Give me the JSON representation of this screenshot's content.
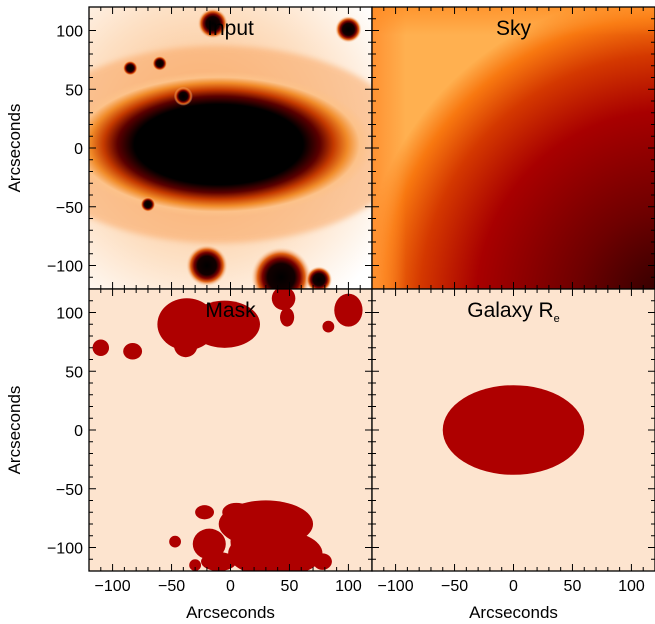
{
  "chart_data": {
    "type": "heatmap",
    "layout": "2x2",
    "xlabel": "Arcseconds",
    "ylabel": "Arcseconds",
    "xlim": [
      -120,
      120
    ],
    "ylim": [
      -120,
      120
    ],
    "xticks": [
      -100,
      -50,
      0,
      50,
      100
    ],
    "yticks": [
      -100,
      -50,
      0,
      50,
      100
    ],
    "colors": {
      "black": "#000000",
      "dark_red": "#b00000",
      "orange": "#ff8c1a",
      "light": "#ffe8d2",
      "mask_bg": "#fde4cf",
      "mask_fg": "#ae0000"
    },
    "panels": [
      {
        "title": "Input",
        "subscript": "",
        "kind": "image",
        "galaxy": {
          "center": [
            -10,
            3
          ],
          "semi_axes": [
            130,
            62
          ]
        },
        "point_sources": [
          {
            "x": -15,
            "y": 106,
            "radius": 8
          },
          {
            "x": 100,
            "y": 101,
            "radius": 7
          },
          {
            "x": -40,
            "y": 44,
            "radius": 5
          },
          {
            "x": -85,
            "y": 68,
            "radius": 4
          },
          {
            "x": -60,
            "y": 72,
            "radius": 4
          },
          {
            "x": -70,
            "y": -48,
            "radius": 4
          },
          {
            "x": -20,
            "y": -100,
            "radius": 11
          },
          {
            "x": 43,
            "y": -110,
            "radius": 16
          },
          {
            "x": 75,
            "y": -112,
            "radius": 7
          }
        ]
      },
      {
        "title": "Sky",
        "subscript": "",
        "kind": "gradient",
        "gradient": "bright at left and top edges, darkening toward lower right"
      },
      {
        "title": "Mask",
        "subscript": "",
        "kind": "mask",
        "masked_regions": [
          {
            "x": -37,
            "y": 90,
            "rx": 25,
            "ry": 22
          },
          {
            "x": -5,
            "y": 90,
            "rx": 30,
            "ry": 20
          },
          {
            "x": -38,
            "y": 72,
            "rx": 10,
            "ry": 10
          },
          {
            "x": -110,
            "y": 70,
            "rx": 7,
            "ry": 7
          },
          {
            "x": -83,
            "y": 67,
            "rx": 8,
            "ry": 7
          },
          {
            "x": 45,
            "y": 112,
            "rx": 10,
            "ry": 10
          },
          {
            "x": 48,
            "y": 96,
            "rx": 6,
            "ry": 8
          },
          {
            "x": 83,
            "y": 88,
            "rx": 5,
            "ry": 5
          },
          {
            "x": 100,
            "y": 102,
            "rx": 12,
            "ry": 14
          },
          {
            "x": 30,
            "y": -80,
            "rx": 40,
            "ry": 20
          },
          {
            "x": 38,
            "y": -105,
            "rx": 40,
            "ry": 20
          },
          {
            "x": 5,
            "y": -70,
            "rx": 12,
            "ry": 8
          },
          {
            "x": -22,
            "y": -70,
            "rx": 8,
            "ry": 6
          },
          {
            "x": 15,
            "y": -95,
            "rx": 15,
            "ry": 20
          },
          {
            "x": -18,
            "y": -97,
            "rx": 14,
            "ry": 13
          },
          {
            "x": -47,
            "y": -95,
            "rx": 5,
            "ry": 5
          },
          {
            "x": -10,
            "y": -112,
            "rx": 15,
            "ry": 8
          },
          {
            "x": -30,
            "y": -115,
            "rx": 5,
            "ry": 5
          },
          {
            "x": 78,
            "y": -112,
            "rx": 8,
            "ry": 7
          }
        ]
      },
      {
        "title": "Galaxy R",
        "subscript": "e",
        "kind": "mask",
        "masked_regions": [
          {
            "x": 0,
            "y": 0,
            "rx": 60,
            "ry": 38
          }
        ]
      }
    ]
  }
}
